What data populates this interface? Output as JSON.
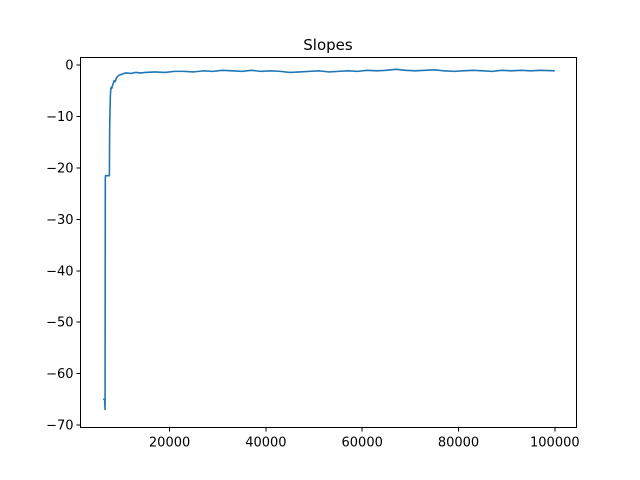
{
  "chart_data": {
    "type": "line",
    "title": "Slopes",
    "xlabel": "",
    "ylabel": "",
    "xlim": [
      1500,
      104500
    ],
    "ylim": [
      -70.5,
      1.5
    ],
    "xticks": [
      20000,
      40000,
      60000,
      80000,
      100000
    ],
    "xtick_labels": [
      "20000",
      "40000",
      "60000",
      "80000",
      "100000"
    ],
    "yticks": [
      0,
      -10,
      -20,
      -30,
      -40,
      -50,
      -60,
      -70
    ],
    "ytick_labels": [
      "0",
      "−10",
      "−20",
      "−30",
      "−40",
      "−50",
      "−60",
      "−70"
    ],
    "grid": false,
    "series": [
      {
        "color": "#1f77b4",
        "x": [
          6200,
          6500,
          6600,
          6650,
          6700,
          6800,
          7000,
          7300,
          7500,
          7550,
          7600,
          7700,
          7800,
          7900,
          8000,
          8200,
          8500,
          8700,
          9000,
          9300,
          9600,
          10000,
          10500,
          11000,
          12000,
          13000,
          14000,
          15000,
          17000,
          19000,
          21000,
          23000,
          25000,
          27000,
          29000,
          31000,
          33000,
          35000,
          37000,
          39000,
          41000,
          43000,
          45000,
          47000,
          49000,
          51000,
          53000,
          55000,
          57000,
          59000,
          61000,
          63000,
          65000,
          67000,
          69000,
          71000,
          73000,
          75000,
          77000,
          79000,
          81000,
          83000,
          85000,
          87000,
          89000,
          91000,
          93000,
          95000,
          97000,
          100000
        ],
        "y": [
          -65,
          -65,
          -67,
          -22,
          -21.5,
          -21.5,
          -21.5,
          -21.5,
          -21.5,
          -13,
          -10,
          -6,
          -4.5,
          -4.3,
          -4.5,
          -3.8,
          -3.0,
          -3.2,
          -2.4,
          -2.1,
          -1.9,
          -1.8,
          -1.6,
          -1.5,
          -1.6,
          -1.4,
          -1.5,
          -1.4,
          -1.3,
          -1.4,
          -1.2,
          -1.2,
          -1.3,
          -1.1,
          -1.2,
          -1.0,
          -1.1,
          -1.2,
          -1.0,
          -1.2,
          -1.1,
          -1.2,
          -1.4,
          -1.3,
          -1.2,
          -1.1,
          -1.3,
          -1.2,
          -1.1,
          -1.2,
          -1.0,
          -1.1,
          -1.0,
          -0.8,
          -1.0,
          -1.1,
          -1.0,
          -0.9,
          -1.1,
          -1.2,
          -1.1,
          -1.0,
          -1.1,
          -1.2,
          -1.0,
          -1.1,
          -1.0,
          -1.1,
          -1.0,
          -1.1
        ]
      }
    ]
  }
}
